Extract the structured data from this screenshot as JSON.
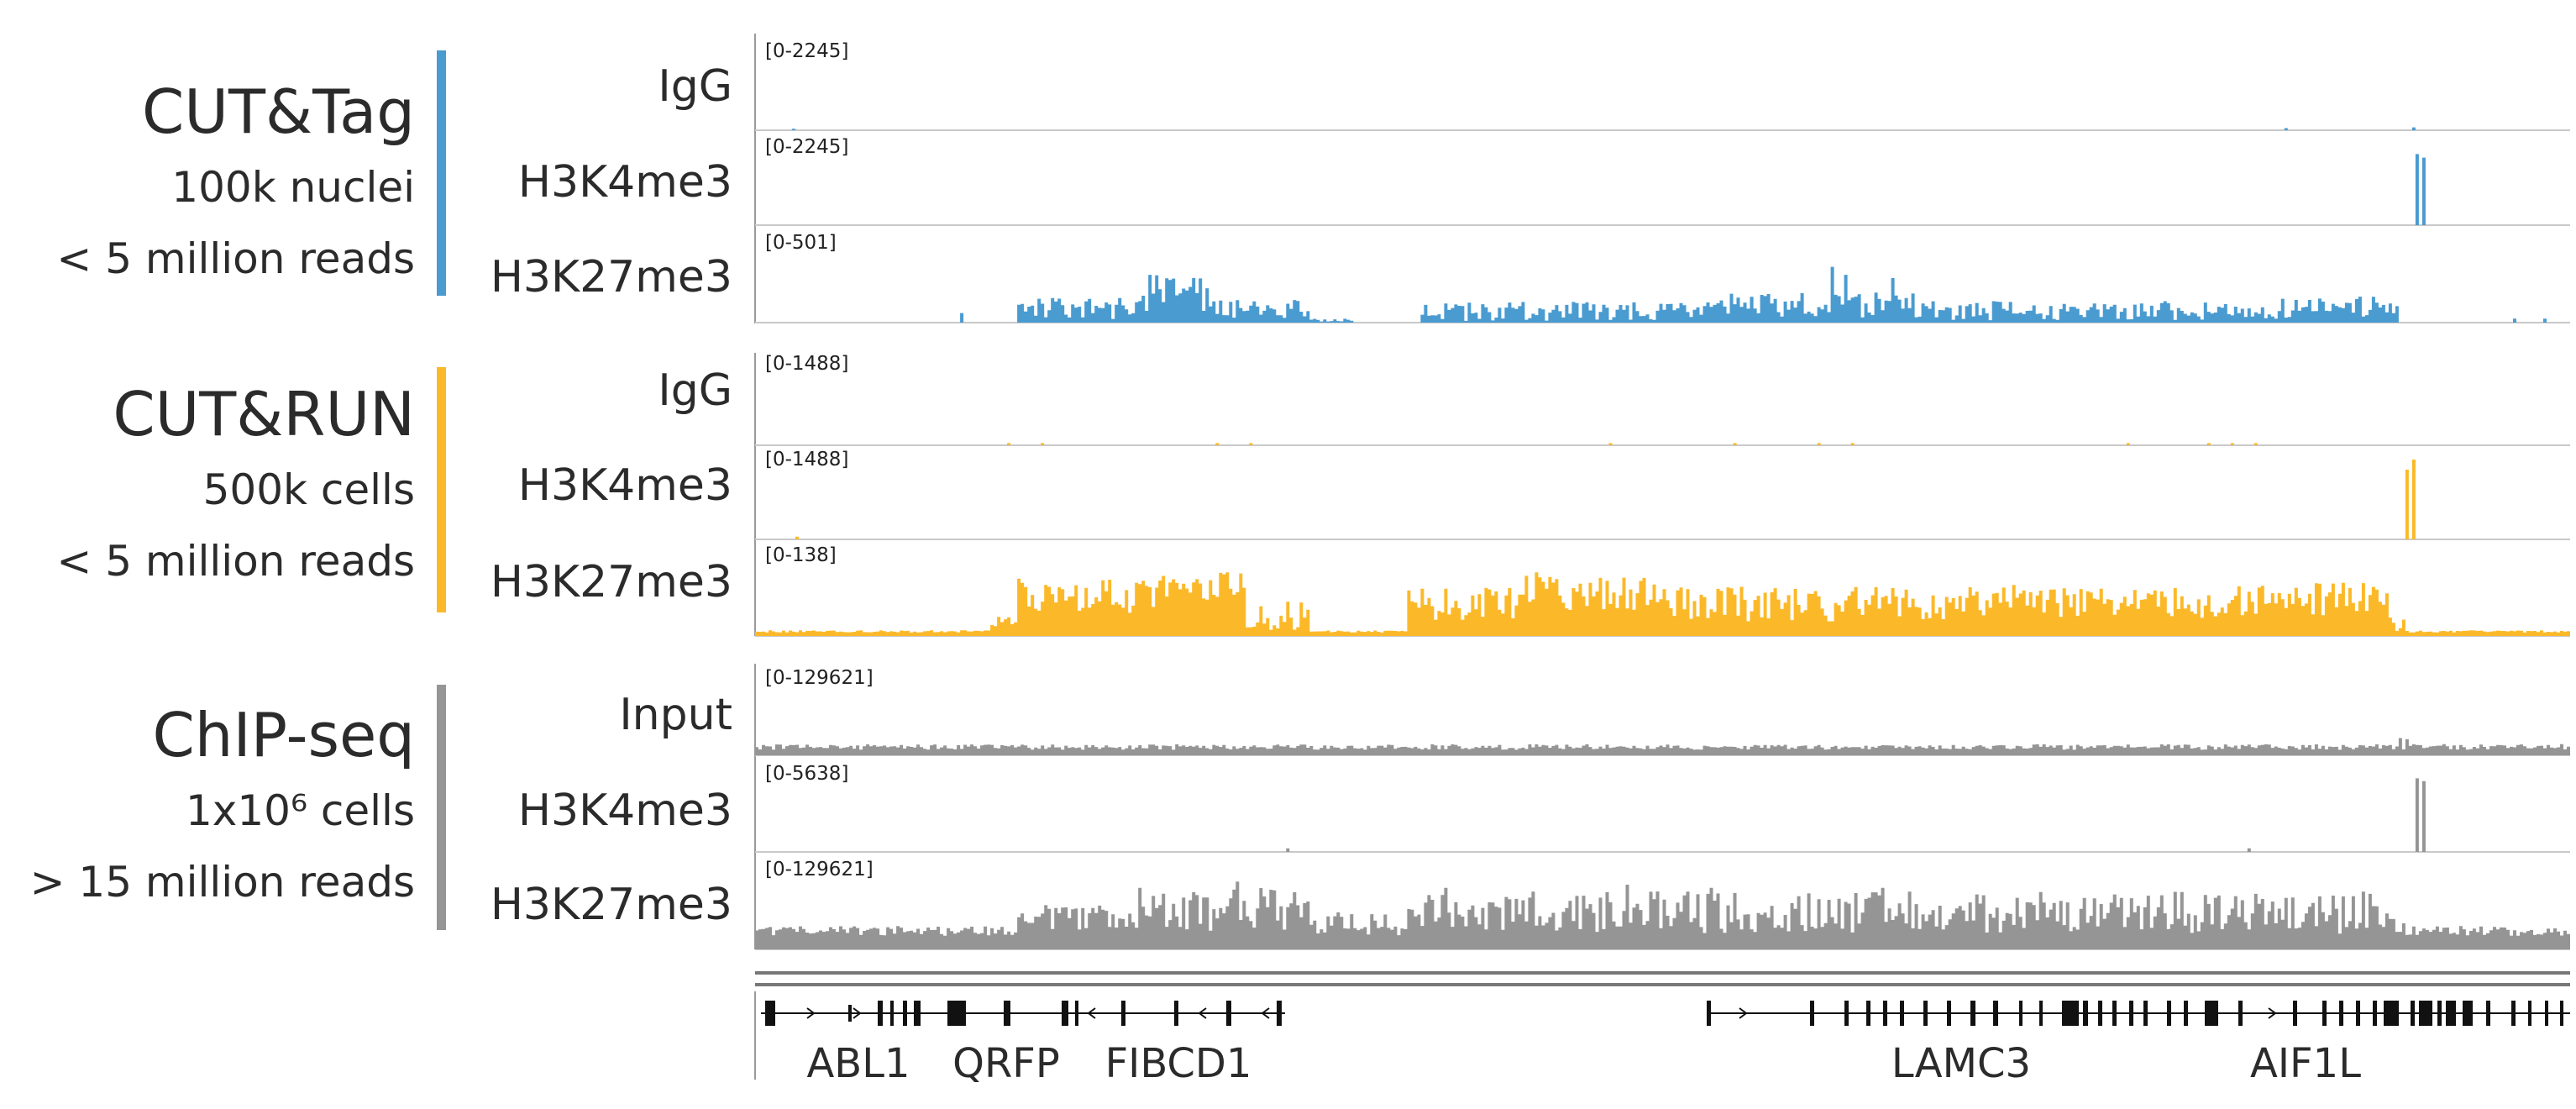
{
  "groups": [
    {
      "title": "CUT&Tag",
      "line1": "100k nuclei",
      "line2": "< 5 million reads",
      "color": "#4a9bd0",
      "tracks": [
        {
          "label": "IgG",
          "range": "[0-2245]"
        },
        {
          "label": "H3K4me3",
          "range": "[0-2245]"
        },
        {
          "label": "H3K27me3",
          "range": "[0-501]"
        }
      ]
    },
    {
      "title": "CUT&RUN",
      "line1": "500k cells",
      "line2": "< 5 million reads",
      "color": "#fbb92a",
      "tracks": [
        {
          "label": "IgG",
          "range": "[0-1488]"
        },
        {
          "label": "H3K4me3",
          "range": "[0-1488]"
        },
        {
          "label": "H3K27me3",
          "range": "[0-138]"
        }
      ]
    },
    {
      "title": "ChIP-seq",
      "line1": "1x10⁶ cells",
      "line2": "> 15 million reads",
      "color": "#959595",
      "tracks": [
        {
          "label": "Input",
          "range": "[0-129621]"
        },
        {
          "label": "H3K4me3",
          "range": "[0-5638]"
        },
        {
          "label": "H3K27me3",
          "range": "[0-129621]"
        }
      ]
    }
  ],
  "genes": [
    {
      "name": "ABL1"
    },
    {
      "name": "QRFP"
    },
    {
      "name": "FIBCD1"
    },
    {
      "name": "LAMC3"
    },
    {
      "name": "AIF1L"
    }
  ],
  "chart_data": {
    "type": "area",
    "title": "",
    "xlabel": "",
    "ylabel": "",
    "x_domain": [
      0,
      1
    ],
    "grid": false,
    "legend": "none",
    "series": [
      {
        "name": "CUT&Tag IgG",
        "ylim": [
          0,
          2245
        ],
        "base": 0,
        "noise": 0,
        "spikes": [
          [
            0.02,
            40
          ],
          [
            0.842,
            60
          ],
          [
            0.913,
            80
          ]
        ],
        "segments": []
      },
      {
        "name": "CUT&Tag H3K4me3",
        "ylim": [
          0,
          2245
        ],
        "base": 0,
        "noise": 0,
        "spikes": [
          [
            0.915,
            2000
          ],
          [
            0.918,
            1900
          ]
        ],
        "segments": []
      },
      {
        "name": "CUT&Tag H3K27me3",
        "ylim": [
          0,
          501
        ],
        "base": 0,
        "noise": 0,
        "spikes": [
          [
            0.113,
            60
          ],
          [
            0.968,
            25
          ],
          [
            0.985,
            25
          ],
          [
            0.24,
            280
          ],
          [
            0.216,
            300
          ],
          [
            0.593,
            350
          ],
          [
            0.6,
            300
          ],
          [
            0.625,
            280
          ]
        ],
        "segments": [
          [
            0.145,
            0.21,
            90,
            70
          ],
          [
            0.21,
            0.25,
            180,
            120
          ],
          [
            0.25,
            0.305,
            90,
            60
          ],
          [
            0.305,
            0.33,
            15,
            10
          ],
          [
            0.367,
            0.53,
            70,
            60
          ],
          [
            0.53,
            0.645,
            110,
            80
          ],
          [
            0.645,
            0.84,
            75,
            60
          ],
          [
            0.84,
            0.905,
            100,
            70
          ]
        ]
      },
      {
        "name": "CUT&RUN IgG",
        "ylim": [
          0,
          1488
        ],
        "base": 0,
        "noise": 0,
        "spikes": [
          [
            0.138,
            40
          ],
          [
            0.157,
            40
          ],
          [
            0.253,
            40
          ],
          [
            0.273,
            40
          ],
          [
            0.47,
            40
          ],
          [
            0.538,
            40
          ],
          [
            0.585,
            40
          ],
          [
            0.603,
            40
          ],
          [
            0.755,
            40
          ],
          [
            0.8,
            40
          ],
          [
            0.813,
            40
          ],
          [
            0.825,
            40
          ]
        ],
        "segments": []
      },
      {
        "name": "CUT&RUN H3K4me3",
        "ylim": [
          0,
          1488
        ],
        "base": 0,
        "noise": 0,
        "spikes": [
          [
            0.023,
            50
          ],
          [
            0.91,
            1300
          ],
          [
            0.913,
            1488
          ]
        ],
        "segments": []
      },
      {
        "name": "CUT&RUN H3K27me3",
        "ylim": [
          0,
          138
        ],
        "base": 6,
        "noise": 4,
        "spikes": [
          [
            0.26,
            110
          ],
          [
            0.43,
            110
          ]
        ],
        "segments": [
          [
            0.13,
            0.145,
            25,
            20
          ],
          [
            0.145,
            0.21,
            70,
            30
          ],
          [
            0.21,
            0.27,
            80,
            30
          ],
          [
            0.27,
            0.305,
            40,
            30
          ],
          [
            0.36,
            0.42,
            55,
            30
          ],
          [
            0.42,
            0.5,
            75,
            30
          ],
          [
            0.5,
            0.655,
            55,
            30
          ],
          [
            0.655,
            0.83,
            60,
            30
          ],
          [
            0.83,
            0.9,
            65,
            30
          ],
          [
            0.9,
            0.91,
            20,
            15
          ]
        ]
      },
      {
        "name": "ChIP-seq Input",
        "ylim": [
          0,
          129621
        ],
        "base": 9000,
        "noise": 9000,
        "spikes": [
          [
            0.905,
            28000
          ],
          [
            0.91,
            26000
          ]
        ],
        "segments": []
      },
      {
        "name": "ChIP-seq H3K4me3",
        "ylim": [
          0,
          5638
        ],
        "base": 0,
        "noise": 0,
        "spikes": [
          [
            0.293,
            250
          ],
          [
            0.822,
            250
          ],
          [
            0.915,
            5200
          ],
          [
            0.918,
            5000
          ]
        ],
        "segments": []
      },
      {
        "name": "ChIP-seq H3K27me3",
        "ylim": [
          0,
          129621
        ],
        "base": 22000,
        "noise": 16000,
        "spikes": [
          [
            0.265,
            110000
          ],
          [
            0.38,
            100000
          ],
          [
            0.48,
            105000
          ],
          [
            0.525,
            100000
          ],
          [
            0.62,
            100000
          ]
        ],
        "segments": [
          [
            0.145,
            0.2,
            50000,
            25000
          ],
          [
            0.2,
            0.305,
            65000,
            35000
          ],
          [
            0.305,
            0.35,
            40000,
            20000
          ],
          [
            0.36,
            0.9,
            60000,
            35000
          ],
          [
            0.9,
            0.91,
            35000,
            15000
          ]
        ]
      }
    ]
  }
}
